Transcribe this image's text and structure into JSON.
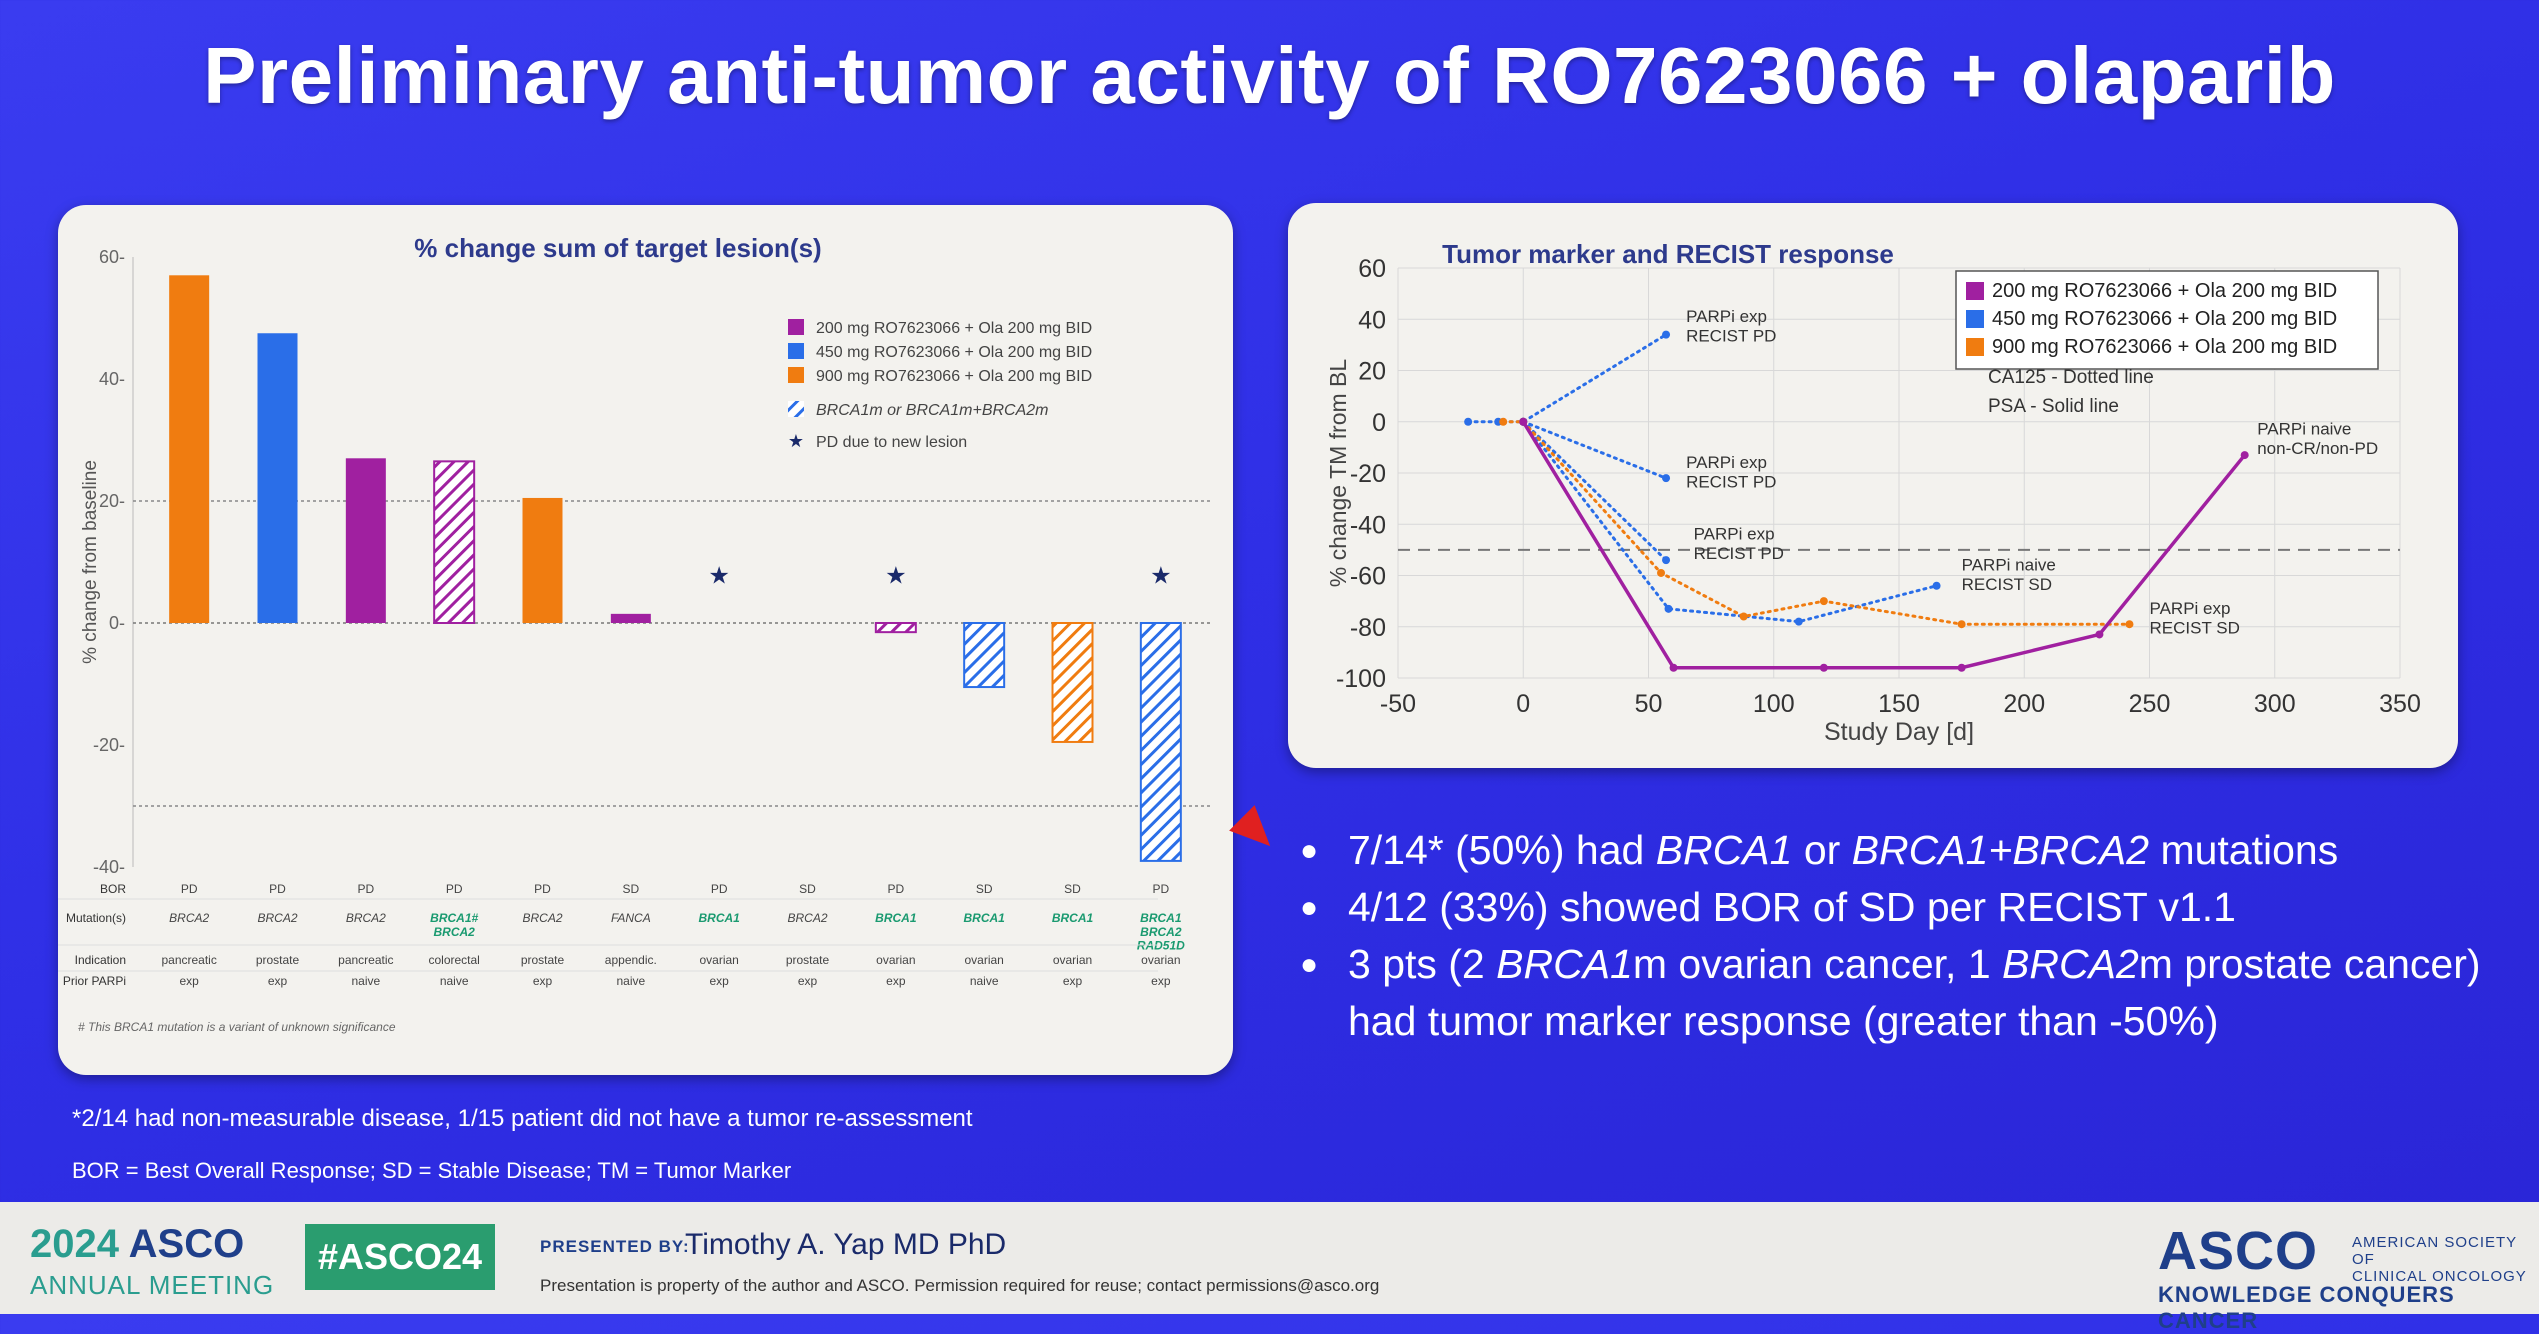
{
  "slide_title": "Preliminary anti-tumor activity of RO7623066 + olaparib",
  "colors": {
    "purple": "#a020a0",
    "blue": "#2a6ee8",
    "orange": "#f07c10"
  },
  "chart_data": [
    {
      "type": "bar",
      "title": "% change sum of target lesion(s)",
      "ylabel": "% change from baseline",
      "ylim": [
        -40,
        60
      ],
      "yticks": [
        "60-",
        "40-",
        "20-",
        "0-",
        "-20-",
        "-40-"
      ],
      "reference_lines": [
        20,
        -30
      ],
      "legend": [
        {
          "label": "200 mg RO7623066 + Ola 200 mg BID",
          "color": "#a020a0"
        },
        {
          "label": "450 mg RO7623066 + Ola 200 mg BID",
          "color": "#2a6ee8"
        },
        {
          "label": "900 mg RO7623066 + Ola 200 mg BID",
          "color": "#f07c10"
        },
        {
          "label": "BRCA1m or BRCA1m+BRCA2m",
          "pattern": "hatch"
        },
        {
          "label": "PD due to new lesion",
          "symbol": "★"
        }
      ],
      "bars": [
        {
          "value": 57,
          "dose": "900",
          "hatched": false,
          "star": false
        },
        {
          "value": 47.5,
          "dose": "450",
          "hatched": false,
          "star": false
        },
        {
          "value": 27,
          "dose": "200",
          "hatched": false,
          "star": false
        },
        {
          "value": 26.5,
          "dose": "200",
          "hatched": true,
          "star": false
        },
        {
          "value": 20.5,
          "dose": "900",
          "hatched": false,
          "star": false
        },
        {
          "value": 1.5,
          "dose": "200",
          "hatched": false,
          "star": false
        },
        {
          "value": 0,
          "dose": null,
          "hatched": false,
          "star": true
        },
        {
          "value": 0,
          "dose": null,
          "hatched": false,
          "star": false
        },
        {
          "value": -1.5,
          "dose": "200",
          "hatched": true,
          "star": true
        },
        {
          "value": -10.5,
          "dose": "450",
          "hatched": true,
          "star": false
        },
        {
          "value": -19.5,
          "dose": "900",
          "hatched": true,
          "star": false
        },
        {
          "value": -39,
          "dose": "450",
          "hatched": true,
          "star": true
        }
      ],
      "table": {
        "row_labels": [
          "BOR",
          "Mutation(s)",
          "Indication",
          "Prior PARPi"
        ],
        "bor": [
          "PD",
          "PD",
          "PD",
          "PD",
          "PD",
          "SD",
          "PD",
          "SD",
          "PD",
          "SD",
          "SD",
          "PD"
        ],
        "mutation": [
          "BRCA2",
          "BRCA2",
          "BRCA2",
          "BRCA1#\nBRCA2",
          "BRCA2",
          "FANCA",
          "BRCA1",
          "BRCA2",
          "BRCA1",
          "BRCA1",
          "BRCA1",
          "BRCA1\nBRCA2\nRAD51D"
        ],
        "mutation_green": [
          false,
          false,
          false,
          true,
          false,
          false,
          true,
          false,
          true,
          true,
          true,
          true
        ],
        "indication": [
          "pancreatic",
          "prostate",
          "pancreatic",
          "colorectal",
          "prostate",
          "appendic.",
          "ovarian",
          "prostate",
          "ovarian",
          "ovarian",
          "ovarian",
          "ovarian"
        ],
        "prior_parpi": [
          "exp",
          "exp",
          "naive",
          "naive",
          "exp",
          "naive",
          "exp",
          "exp",
          "exp",
          "naive",
          "exp",
          "exp"
        ]
      },
      "footnote": "# This BRCA1 mutation is a variant of unknown significance"
    },
    {
      "type": "line",
      "title": "Tumor marker and RECIST response",
      "xlabel": "Study Day [d]",
      "ylabel": "% change TM  from BL",
      "xlim": [
        -50,
        350
      ],
      "ylim": [
        -100,
        60
      ],
      "xticks": [
        -50,
        0,
        50,
        100,
        150,
        200,
        250,
        300,
        350
      ],
      "yticks": [
        60,
        40,
        20,
        0,
        -20,
        -40,
        -60,
        -80,
        -100
      ],
      "reference_line": -50,
      "legend": [
        {
          "label": "200 mg RO7623066 + Ola 200 mg BID",
          "color": "#a020a0"
        },
        {
          "label": "450 mg RO7623066 + Ola 200 mg BID",
          "color": "#2a6ee8"
        },
        {
          "label": "900 mg RO7623066 + Ola 200 mg BID",
          "color": "#f07c10"
        }
      ],
      "legend_notes": [
        "CA125 - Dotted line",
        "PSA    - Solid line"
      ],
      "series": [
        {
          "dose": "450",
          "style": "dotted",
          "points": [
            [
              -22,
              0
            ],
            [
              -10,
              0
            ],
            [
              0,
              0
            ],
            [
              57,
              34
            ]
          ]
        },
        {
          "dose": "450",
          "style": "dotted",
          "points": [
            [
              0,
              0
            ],
            [
              57,
              -22
            ]
          ]
        },
        {
          "dose": "450",
          "style": "dotted",
          "points": [
            [
              0,
              0
            ],
            [
              57,
              -54
            ]
          ]
        },
        {
          "dose": "450",
          "style": "dotted",
          "points": [
            [
              0,
              0
            ],
            [
              58,
              -73
            ],
            [
              110,
              -78
            ],
            [
              165,
              -64
            ]
          ]
        },
        {
          "dose": "900",
          "style": "dotted",
          "points": [
            [
              -8,
              0
            ],
            [
              0,
              0
            ],
            [
              55,
              -59
            ],
            [
              88,
              -76
            ],
            [
              120,
              -70
            ],
            [
              175,
              -79
            ],
            [
              242,
              -79
            ]
          ]
        },
        {
          "dose": "200",
          "style": "solid",
          "points": [
            [
              0,
              0
            ],
            [
              60,
              -96
            ],
            [
              120,
              -96
            ],
            [
              175,
              -96
            ],
            [
              230,
              -83
            ],
            [
              288,
              -13
            ]
          ]
        }
      ],
      "annotations": [
        {
          "text": "PARPi exp\nRECIST PD",
          "x": 65,
          "y": 39
        },
        {
          "text": "PARPi exp\nRECIST PD",
          "x": 65,
          "y": -18
        },
        {
          "text": "PARPi exp\nRECIST PD",
          "x": 68,
          "y": -46
        },
        {
          "text": "PARPi naive\nRECIST SD",
          "x": 175,
          "y": -58
        },
        {
          "text": "PARPi naive\nnon-CR/non-PD",
          "x": 293,
          "y": -5
        },
        {
          "text": "PARPi exp\nRECIST SD",
          "x": 250,
          "y": -75
        }
      ]
    }
  ],
  "bullets": [
    {
      "parts": [
        {
          "t": "7/14* (50%) had "
        },
        {
          "t": "BRCA1",
          "i": true
        },
        {
          "t": " or "
        },
        {
          "t": "BRCA1+BRCA2",
          "i": true
        },
        {
          "t": " mutations"
        }
      ]
    },
    {
      "parts": [
        {
          "t": "4/12 (33%) showed BOR of SD per RECIST v1.1"
        }
      ]
    },
    {
      "parts": [
        {
          "t": "3 pts (2 "
        },
        {
          "t": "BRCA1",
          "i": true
        },
        {
          "t": "m ovarian cancer, 1 "
        },
        {
          "t": "BRCA2",
          "i": true
        },
        {
          "t": "m prostate cancer) had tumor marker response (greater than -50%)"
        }
      ]
    }
  ],
  "notes": {
    "footnote": "*2/14 had non-measurable disease, 1/15 patient did not have a tumor re-assessment",
    "abbrev": "BOR = Best Overall Response; SD = Stable Disease; TM = Tumor Marker"
  },
  "footer": {
    "year": "2024",
    "asco": "ASCO",
    "meeting": "ANNUAL MEETING",
    "hashtag": "#ASCO24",
    "presented_by": "PRESENTED BY:",
    "presenter": "Timothy A. Yap MD PhD",
    "disclaimer": "Presentation is property of the author and ASCO. Permission required for reuse; contact permissions@asco.org",
    "logo": "ASCO",
    "society": "AMERICAN SOCIETY OF\nCLINICAL ONCOLOGY",
    "tagline": "KNOWLEDGE CONQUERS CANCER"
  }
}
